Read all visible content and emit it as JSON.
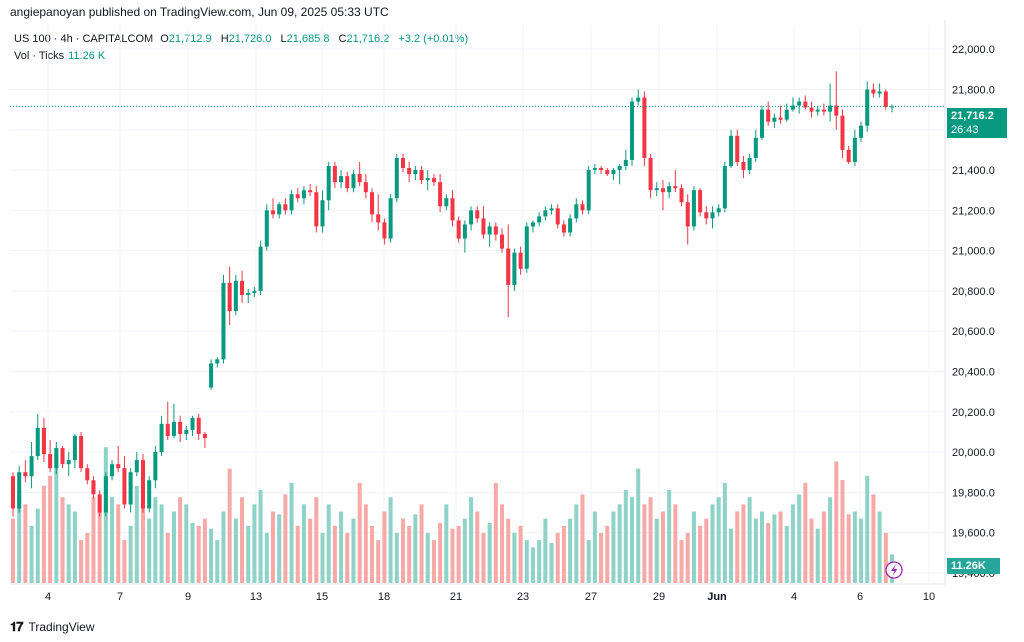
{
  "header": {
    "published": "angiepanoyan published on TradingView.com, Jun 09, 2025 05:33 UTC"
  },
  "legend": {
    "symbol": "US 100 · 4h · CAPITALCOM",
    "o_label": "O",
    "open": "21,712.9",
    "h_label": "H",
    "high": "21,726.0",
    "l_label": "L",
    "low": "21,685.8",
    "c_label": "C",
    "close": "21,716.2",
    "change": "+3.2 (+0.01%)",
    "vol_label": "Vol · Ticks",
    "vol_value": "11.26 K"
  },
  "price_tag": {
    "price": "21,716.2",
    "countdown": "26:43"
  },
  "vol_tag": "11.26K",
  "footer": {
    "logo": "𝟏𝟕",
    "brand": "TradingView"
  },
  "colors": {
    "up": "#089981",
    "down": "#f23645",
    "vol_up": "#8fd3c8",
    "vol_down": "#f7a9a7",
    "grid": "#f0f3fa"
  },
  "chart_data": {
    "type": "candlestick",
    "y_ticks": [
      "22,000.0",
      "21,800.0",
      "21,600.0",
      "21,400.0",
      "21,200.0",
      "21,000.0",
      "20,800.0",
      "20,600.0",
      "20,400.0",
      "20,200.0",
      "20,000.0",
      "19,800.0",
      "19,600.0",
      "19,400.0"
    ],
    "x_ticks": [
      "4",
      "7",
      "9",
      "13",
      "15",
      "18",
      "21",
      "23",
      "27",
      "29",
      "Jun",
      "4",
      "6",
      "10"
    ],
    "ylim": [
      19350,
      22120
    ],
    "last_price": 21716.2,
    "candles": [
      {
        "o": 19880,
        "h": 19900,
        "l": 19680,
        "c": 19720
      },
      {
        "o": 19720,
        "h": 19930,
        "l": 19700,
        "c": 19900
      },
      {
        "o": 19900,
        "h": 19960,
        "l": 19850,
        "c": 19880
      },
      {
        "o": 19880,
        "h": 20050,
        "l": 19820,
        "c": 19980
      },
      {
        "o": 19980,
        "h": 20190,
        "l": 19960,
        "c": 20120
      },
      {
        "o": 20120,
        "h": 20170,
        "l": 19950,
        "c": 19990
      },
      {
        "o": 19990,
        "h": 20060,
        "l": 19900,
        "c": 19920
      },
      {
        "o": 19920,
        "h": 20050,
        "l": 19890,
        "c": 20020
      },
      {
        "o": 20020,
        "h": 20030,
        "l": 19920,
        "c": 19940
      },
      {
        "o": 19940,
        "h": 20000,
        "l": 19880,
        "c": 19960
      },
      {
        "o": 19960,
        "h": 20090,
        "l": 19920,
        "c": 20080
      },
      {
        "o": 20080,
        "h": 20100,
        "l": 19900,
        "c": 19920
      },
      {
        "o": 19920,
        "h": 19940,
        "l": 19840,
        "c": 19860
      },
      {
        "o": 19860,
        "h": 19880,
        "l": 19770,
        "c": 19790
      },
      {
        "o": 19790,
        "h": 19810,
        "l": 19680,
        "c": 19700
      },
      {
        "o": 19700,
        "h": 19900,
        "l": 19680,
        "c": 19880
      },
      {
        "o": 19880,
        "h": 19960,
        "l": 19860,
        "c": 19940
      },
      {
        "o": 19940,
        "h": 20030,
        "l": 19900,
        "c": 19920
      },
      {
        "o": 19920,
        "h": 19980,
        "l": 19720,
        "c": 19740
      },
      {
        "o": 19740,
        "h": 19920,
        "l": 19700,
        "c": 19900
      },
      {
        "o": 19900,
        "h": 20000,
        "l": 19880,
        "c": 19960
      },
      {
        "o": 19960,
        "h": 19990,
        "l": 19700,
        "c": 19720
      },
      {
        "o": 19720,
        "h": 19880,
        "l": 19700,
        "c": 19860
      },
      {
        "o": 19860,
        "h": 20030,
        "l": 19820,
        "c": 20000
      },
      {
        "o": 20000,
        "h": 20180,
        "l": 19980,
        "c": 20140
      },
      {
        "o": 20140,
        "h": 20250,
        "l": 20060,
        "c": 20080
      },
      {
        "o": 20080,
        "h": 20240,
        "l": 20070,
        "c": 20150
      },
      {
        "o": 20150,
        "h": 20180,
        "l": 20050,
        "c": 20090
      },
      {
        "o": 20090,
        "h": 20130,
        "l": 20060,
        "c": 20110
      },
      {
        "o": 20110,
        "h": 20180,
        "l": 20080,
        "c": 20170
      },
      {
        "o": 20170,
        "h": 20190,
        "l": 20060,
        "c": 20090
      },
      {
        "o": 20090,
        "h": 20100,
        "l": 20020,
        "c": 20070
      },
      {
        "o": 20320,
        "h": 20460,
        "l": 20310,
        "c": 20440
      },
      {
        "o": 20440,
        "h": 20470,
        "l": 20420,
        "c": 20460
      },
      {
        "o": 20460,
        "h": 20880,
        "l": 20440,
        "c": 20840
      },
      {
        "o": 20840,
        "h": 20920,
        "l": 20630,
        "c": 20700
      },
      {
        "o": 20700,
        "h": 20880,
        "l": 20680,
        "c": 20850
      },
      {
        "o": 20850,
        "h": 20900,
        "l": 20740,
        "c": 20780
      },
      {
        "o": 20780,
        "h": 20810,
        "l": 20740,
        "c": 20790
      },
      {
        "o": 20790,
        "h": 20820,
        "l": 20770,
        "c": 20800
      },
      {
        "o": 20800,
        "h": 21050,
        "l": 20780,
        "c": 21020
      },
      {
        "o": 21020,
        "h": 21230,
        "l": 21000,
        "c": 21200
      },
      {
        "o": 21200,
        "h": 21260,
        "l": 21160,
        "c": 21180
      },
      {
        "o": 21180,
        "h": 21240,
        "l": 21160,
        "c": 21230
      },
      {
        "o": 21230,
        "h": 21260,
        "l": 21180,
        "c": 21200
      },
      {
        "o": 21200,
        "h": 21300,
        "l": 21180,
        "c": 21280
      },
      {
        "o": 21280,
        "h": 21310,
        "l": 21240,
        "c": 21260
      },
      {
        "o": 21260,
        "h": 21320,
        "l": 21230,
        "c": 21300
      },
      {
        "o": 21300,
        "h": 21330,
        "l": 21270,
        "c": 21290
      },
      {
        "o": 21290,
        "h": 21320,
        "l": 21090,
        "c": 21120
      },
      {
        "o": 21120,
        "h": 21300,
        "l": 21090,
        "c": 21250
      },
      {
        "o": 21250,
        "h": 21440,
        "l": 21200,
        "c": 21420
      },
      {
        "o": 21420,
        "h": 21440,
        "l": 21310,
        "c": 21340
      },
      {
        "o": 21340,
        "h": 21400,
        "l": 21310,
        "c": 21370
      },
      {
        "o": 21370,
        "h": 21390,
        "l": 21290,
        "c": 21310
      },
      {
        "o": 21310,
        "h": 21400,
        "l": 21290,
        "c": 21380
      },
      {
        "o": 21380,
        "h": 21440,
        "l": 21320,
        "c": 21340
      },
      {
        "o": 21340,
        "h": 21380,
        "l": 21260,
        "c": 21290
      },
      {
        "o": 21290,
        "h": 21310,
        "l": 21140,
        "c": 21180
      },
      {
        "o": 21180,
        "h": 21280,
        "l": 21100,
        "c": 21140
      },
      {
        "o": 21140,
        "h": 21160,
        "l": 21030,
        "c": 21060
      },
      {
        "o": 21060,
        "h": 21280,
        "l": 21040,
        "c": 21260
      },
      {
        "o": 21260,
        "h": 21480,
        "l": 21240,
        "c": 21460
      },
      {
        "o": 21460,
        "h": 21480,
        "l": 21390,
        "c": 21410
      },
      {
        "o": 21410,
        "h": 21440,
        "l": 21340,
        "c": 21380
      },
      {
        "o": 21380,
        "h": 21420,
        "l": 21350,
        "c": 21400
      },
      {
        "o": 21400,
        "h": 21420,
        "l": 21330,
        "c": 21350
      },
      {
        "o": 21350,
        "h": 21400,
        "l": 21300,
        "c": 21360
      },
      {
        "o": 21360,
        "h": 21380,
        "l": 21320,
        "c": 21340
      },
      {
        "o": 21340,
        "h": 21380,
        "l": 21190,
        "c": 21220
      },
      {
        "o": 21220,
        "h": 21280,
        "l": 21200,
        "c": 21260
      },
      {
        "o": 21260,
        "h": 21300,
        "l": 21120,
        "c": 21150
      },
      {
        "o": 21150,
        "h": 21170,
        "l": 21040,
        "c": 21060
      },
      {
        "o": 21060,
        "h": 21150,
        "l": 20990,
        "c": 21130
      },
      {
        "o": 21130,
        "h": 21220,
        "l": 21100,
        "c": 21200
      },
      {
        "o": 21200,
        "h": 21220,
        "l": 21140,
        "c": 21160
      },
      {
        "o": 21160,
        "h": 21220,
        "l": 21060,
        "c": 21080
      },
      {
        "o": 21080,
        "h": 21140,
        "l": 21020,
        "c": 21120
      },
      {
        "o": 21120,
        "h": 21140,
        "l": 21050,
        "c": 21080
      },
      {
        "o": 21080,
        "h": 21110,
        "l": 20990,
        "c": 21010
      },
      {
        "o": 21010,
        "h": 21130,
        "l": 20670,
        "c": 20830
      },
      {
        "o": 20830,
        "h": 21010,
        "l": 20800,
        "c": 20990
      },
      {
        "o": 20990,
        "h": 21020,
        "l": 20880,
        "c": 20910
      },
      {
        "o": 20910,
        "h": 21140,
        "l": 20890,
        "c": 21120
      },
      {
        "o": 21120,
        "h": 21150,
        "l": 21090,
        "c": 21140
      },
      {
        "o": 21140,
        "h": 21190,
        "l": 21120,
        "c": 21170
      },
      {
        "o": 21170,
        "h": 21220,
        "l": 21150,
        "c": 21200
      },
      {
        "o": 21200,
        "h": 21230,
        "l": 21180,
        "c": 21210
      },
      {
        "o": 21210,
        "h": 21230,
        "l": 21110,
        "c": 21130
      },
      {
        "o": 21130,
        "h": 21150,
        "l": 21070,
        "c": 21090
      },
      {
        "o": 21090,
        "h": 21180,
        "l": 21070,
        "c": 21160
      },
      {
        "o": 21160,
        "h": 21260,
        "l": 21140,
        "c": 21230
      },
      {
        "o": 21230,
        "h": 21250,
        "l": 21180,
        "c": 21200
      },
      {
        "o": 21200,
        "h": 21420,
        "l": 21180,
        "c": 21400
      },
      {
        "o": 21400,
        "h": 21430,
        "l": 21380,
        "c": 21410
      },
      {
        "o": 21410,
        "h": 21420,
        "l": 21380,
        "c": 21400
      },
      {
        "o": 21400,
        "h": 21410,
        "l": 21370,
        "c": 21380
      },
      {
        "o": 21380,
        "h": 21410,
        "l": 21350,
        "c": 21400
      },
      {
        "o": 21400,
        "h": 21430,
        "l": 21330,
        "c": 21420
      },
      {
        "o": 21420,
        "h": 21500,
        "l": 21400,
        "c": 21450
      },
      {
        "o": 21450,
        "h": 21760,
        "l": 21420,
        "c": 21740
      },
      {
        "o": 21740,
        "h": 21800,
        "l": 21720,
        "c": 21760
      },
      {
        "o": 21760,
        "h": 21790,
        "l": 21420,
        "c": 21460
      },
      {
        "o": 21460,
        "h": 21480,
        "l": 21260,
        "c": 21300
      },
      {
        "o": 21300,
        "h": 21340,
        "l": 21270,
        "c": 21310
      },
      {
        "o": 21310,
        "h": 21350,
        "l": 21200,
        "c": 21290
      },
      {
        "o": 21290,
        "h": 21340,
        "l": 21260,
        "c": 21320
      },
      {
        "o": 21320,
        "h": 21400,
        "l": 21290,
        "c": 21310
      },
      {
        "o": 21310,
        "h": 21330,
        "l": 21220,
        "c": 21240
      },
      {
        "o": 21240,
        "h": 21280,
        "l": 21030,
        "c": 21120
      },
      {
        "o": 21120,
        "h": 21320,
        "l": 21100,
        "c": 21300
      },
      {
        "o": 21300,
        "h": 21310,
        "l": 21170,
        "c": 21190
      },
      {
        "o": 21190,
        "h": 21220,
        "l": 21130,
        "c": 21160
      },
      {
        "o": 21160,
        "h": 21220,
        "l": 21110,
        "c": 21190
      },
      {
        "o": 21190,
        "h": 21230,
        "l": 21170,
        "c": 21210
      },
      {
        "o": 21210,
        "h": 21440,
        "l": 21190,
        "c": 21420
      },
      {
        "o": 21420,
        "h": 21600,
        "l": 21410,
        "c": 21570
      },
      {
        "o": 21570,
        "h": 21600,
        "l": 21420,
        "c": 21440
      },
      {
        "o": 21440,
        "h": 21470,
        "l": 21360,
        "c": 21400
      },
      {
        "o": 21400,
        "h": 21480,
        "l": 21380,
        "c": 21460
      },
      {
        "o": 21460,
        "h": 21600,
        "l": 21440,
        "c": 21560
      },
      {
        "o": 21560,
        "h": 21720,
        "l": 21550,
        "c": 21700
      },
      {
        "o": 21700,
        "h": 21740,
        "l": 21620,
        "c": 21640
      },
      {
        "o": 21640,
        "h": 21680,
        "l": 21610,
        "c": 21660
      },
      {
        "o": 21660,
        "h": 21720,
        "l": 21630,
        "c": 21650
      },
      {
        "o": 21650,
        "h": 21730,
        "l": 21640,
        "c": 21700
      },
      {
        "o": 21700,
        "h": 21760,
        "l": 21690,
        "c": 21720
      },
      {
        "o": 21720,
        "h": 21760,
        "l": 21680,
        "c": 21740
      },
      {
        "o": 21740,
        "h": 21770,
        "l": 21700,
        "c": 21710
      },
      {
        "o": 21710,
        "h": 21740,
        "l": 21660,
        "c": 21690
      },
      {
        "o": 21690,
        "h": 21720,
        "l": 21670,
        "c": 21700
      },
      {
        "o": 21700,
        "h": 21730,
        "l": 21670,
        "c": 21690
      },
      {
        "o": 21690,
        "h": 21830,
        "l": 21640,
        "c": 21720
      },
      {
        "o": 21720,
        "h": 21890,
        "l": 21600,
        "c": 21670
      },
      {
        "o": 21670,
        "h": 21700,
        "l": 21460,
        "c": 21500
      },
      {
        "o": 21500,
        "h": 21520,
        "l": 21430,
        "c": 21440
      },
      {
        "o": 21440,
        "h": 21600,
        "l": 21420,
        "c": 21560
      },
      {
        "o": 21560,
        "h": 21640,
        "l": 21540,
        "c": 21620
      },
      {
        "o": 21620,
        "h": 21840,
        "l": 21590,
        "c": 21800
      },
      {
        "o": 21800,
        "h": 21830,
        "l": 21760,
        "c": 21780
      },
      {
        "o": 21780,
        "h": 21830,
        "l": 21760,
        "c": 21790
      },
      {
        "o": 21790,
        "h": 21800,
        "l": 21700,
        "c": 21713
      },
      {
        "o": 21713,
        "h": 21726,
        "l": 21686,
        "c": 21716
      }
    ],
    "volumes": [
      0.45,
      0.65,
      0.55,
      0.4,
      0.52,
      0.68,
      0.75,
      0.9,
      0.6,
      0.55,
      0.5,
      0.3,
      0.35,
      0.6,
      0.55,
      0.95,
      0.6,
      0.55,
      0.3,
      0.4,
      0.68,
      0.58,
      0.45,
      0.6,
      0.55,
      0.35,
      0.5,
      0.6,
      0.55,
      0.42,
      0.4,
      0.45,
      0.38,
      0.3,
      0.5,
      0.8,
      0.45,
      0.6,
      0.4,
      0.55,
      0.65,
      0.35,
      0.5,
      0.48,
      0.62,
      0.7,
      0.4,
      0.55,
      0.45,
      0.6,
      0.35,
      0.55,
      0.4,
      0.5,
      0.35,
      0.45,
      0.7,
      0.55,
      0.4,
      0.3,
      0.5,
      0.6,
      0.35,
      0.45,
      0.4,
      0.48,
      0.55,
      0.35,
      0.3,
      0.42,
      0.55,
      0.38,
      0.4,
      0.45,
      0.6,
      0.5,
      0.35,
      0.42,
      0.7,
      0.55,
      0.45,
      0.35,
      0.4,
      0.3,
      0.25,
      0.3,
      0.45,
      0.28,
      0.35,
      0.4,
      0.45,
      0.55,
      0.62,
      0.3,
      0.5,
      0.35,
      0.4,
      0.5,
      0.55,
      0.65,
      0.6,
      0.8,
      0.55,
      0.6,
      0.45,
      0.5,
      0.65,
      0.55,
      0.3,
      0.35,
      0.5,
      0.4,
      0.45,
      0.55,
      0.6,
      0.7,
      0.38,
      0.5,
      0.55,
      0.6,
      0.45,
      0.5,
      0.42,
      0.48,
      0.5,
      0.4,
      0.55,
      0.62,
      0.7,
      0.45,
      0.38,
      0.5,
      0.6,
      0.85,
      0.72,
      0.48,
      0.5,
      0.45,
      0.75,
      0.62,
      0.5,
      0.35,
      0.2
    ],
    "volume_colors_note": "up candles teal, down candles salmon"
  }
}
